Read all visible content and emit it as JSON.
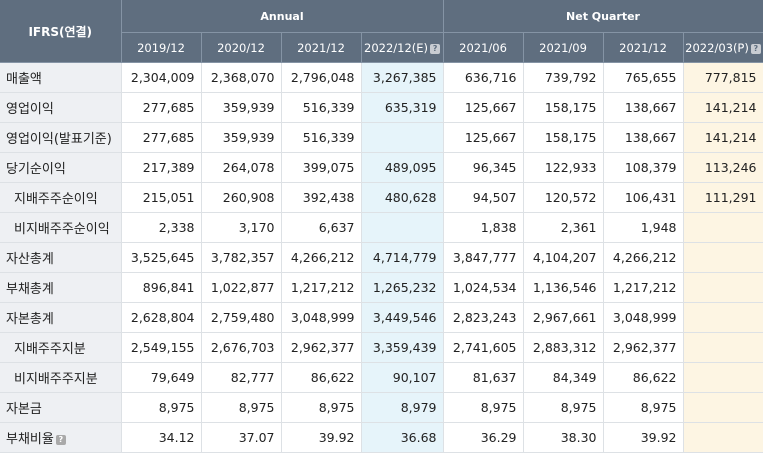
{
  "header": {
    "corner": "IFRS(연결)",
    "group_annual": "Annual",
    "group_quarter": "Net Quarter",
    "help_glyph": "?",
    "periods": [
      "2019/12",
      "2020/12",
      "2021/12",
      "2022/12(E)",
      "2021/06",
      "2021/09",
      "2021/12",
      "2022/03(P)"
    ]
  },
  "rows": [
    {
      "label": "매출액",
      "sub": false,
      "help": false,
      "values": [
        "2,304,009",
        "2,368,070",
        "2,796,048",
        "3,267,385",
        "636,716",
        "739,792",
        "765,655",
        "777,815"
      ]
    },
    {
      "label": "영업이익",
      "sub": false,
      "help": false,
      "values": [
        "277,685",
        "359,939",
        "516,339",
        "635,319",
        "125,667",
        "158,175",
        "138,667",
        "141,214"
      ]
    },
    {
      "label": "영업이익(발표기준)",
      "sub": false,
      "help": false,
      "values": [
        "277,685",
        "359,939",
        "516,339",
        "",
        "125,667",
        "158,175",
        "138,667",
        "141,214"
      ]
    },
    {
      "label": "당기순이익",
      "sub": false,
      "help": false,
      "values": [
        "217,389",
        "264,078",
        "399,075",
        "489,095",
        "96,345",
        "122,933",
        "108,379",
        "113,246"
      ]
    },
    {
      "label": "지배주주순이익",
      "sub": true,
      "help": false,
      "values": [
        "215,051",
        "260,908",
        "392,438",
        "480,628",
        "94,507",
        "120,572",
        "106,431",
        "111,291"
      ]
    },
    {
      "label": "비지배주주순이익",
      "sub": true,
      "help": false,
      "values": [
        "2,338",
        "3,170",
        "6,637",
        "",
        "1,838",
        "2,361",
        "1,948",
        ""
      ]
    },
    {
      "label": "자산총계",
      "sub": false,
      "help": false,
      "values": [
        "3,525,645",
        "3,782,357",
        "4,266,212",
        "4,714,779",
        "3,847,777",
        "4,104,207",
        "4,266,212",
        ""
      ]
    },
    {
      "label": "부채총계",
      "sub": false,
      "help": false,
      "values": [
        "896,841",
        "1,022,877",
        "1,217,212",
        "1,265,232",
        "1,024,534",
        "1,136,546",
        "1,217,212",
        ""
      ]
    },
    {
      "label": "자본총계",
      "sub": false,
      "help": false,
      "values": [
        "2,628,804",
        "2,759,480",
        "3,048,999",
        "3,449,546",
        "2,823,243",
        "2,967,661",
        "3,048,999",
        ""
      ]
    },
    {
      "label": "지배주주지분",
      "sub": true,
      "help": false,
      "values": [
        "2,549,155",
        "2,676,703",
        "2,962,377",
        "3,359,439",
        "2,741,605",
        "2,883,312",
        "2,962,377",
        ""
      ]
    },
    {
      "label": "비지배주주지분",
      "sub": true,
      "help": false,
      "values": [
        "79,649",
        "82,777",
        "86,622",
        "90,107",
        "81,637",
        "84,349",
        "86,622",
        ""
      ]
    },
    {
      "label": "자본금",
      "sub": false,
      "help": false,
      "values": [
        "8,975",
        "8,975",
        "8,975",
        "8,979",
        "8,975",
        "8,975",
        "8,975",
        ""
      ]
    },
    {
      "label": "부채비율",
      "sub": false,
      "help": true,
      "values": [
        "34.12",
        "37.07",
        "39.92",
        "36.68",
        "36.29",
        "38.30",
        "39.92",
        ""
      ]
    }
  ]
}
